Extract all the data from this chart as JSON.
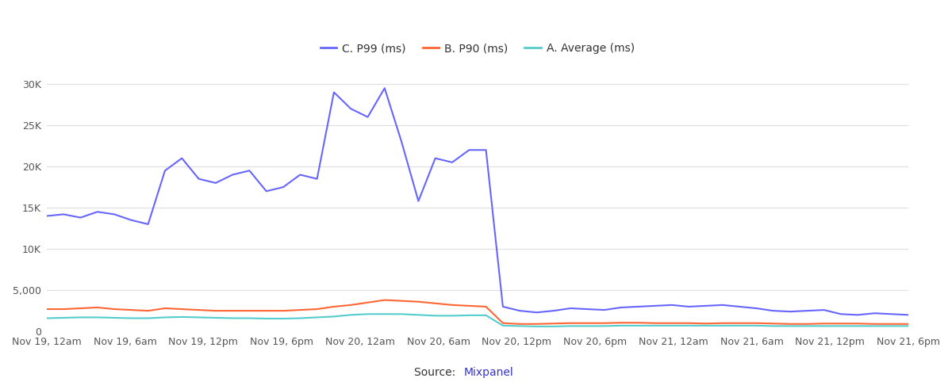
{
  "legend": [
    "C. P99 (ms)",
    "B. P90 (ms)",
    "A. Average (ms)"
  ],
  "legend_colors": [
    "#6666ff",
    "#ff6633",
    "#55cccc"
  ],
  "background_color": "#ffffff",
  "grid_color": "#dddddd",
  "tick_label_color": "#555555",
  "x_tick_labels": [
    "Nov 19, 12am",
    "Nov 19, 6am",
    "Nov 19, 12pm",
    "Nov 19, 6pm",
    "Nov 20, 12am",
    "Nov 20, 6am",
    "Nov 20, 12pm",
    "Nov 20, 6pm",
    "Nov 21, 12am",
    "Nov 21, 6am",
    "Nov 21, 12pm",
    "Nov 21, 6pm"
  ],
  "y_tick_labels": [
    "0",
    "5,000",
    "10K",
    "15K",
    "20K",
    "25K",
    "30K"
  ],
  "y_tick_values": [
    0,
    5000,
    10000,
    15000,
    20000,
    25000,
    30000
  ],
  "ylim": [
    0,
    32000
  ],
  "p99": [
    14000,
    14200,
    13800,
    14500,
    14200,
    13500,
    13000,
    19500,
    21000,
    18500,
    18000,
    19000,
    19500,
    17000,
    17500,
    19000,
    18500,
    29000,
    27000,
    26000,
    29500,
    23000,
    15800,
    21000,
    20500,
    22000,
    22000,
    3000,
    2500,
    2300,
    2500,
    2800,
    2700,
    2600,
    2900,
    3000,
    3100,
    3200,
    3000,
    3100,
    3200,
    3000,
    2800,
    2500,
    2400,
    2500,
    2600,
    2100,
    2000,
    2200,
    2100,
    2000
  ],
  "p90": [
    2700,
    2700,
    2800,
    2900,
    2700,
    2600,
    2500,
    2800,
    2700,
    2600,
    2500,
    2500,
    2500,
    2500,
    2500,
    2600,
    2700,
    3000,
    3200,
    3500,
    3800,
    3700,
    3600,
    3400,
    3200,
    3100,
    3000,
    1000,
    900,
    900,
    950,
    1000,
    1000,
    1000,
    1050,
    1050,
    1000,
    1000,
    1000,
    950,
    1000,
    1000,
    1000,
    950,
    900,
    900,
    950,
    950,
    950,
    900,
    900,
    900
  ],
  "avg": [
    1600,
    1650,
    1700,
    1700,
    1650,
    1600,
    1600,
    1700,
    1750,
    1700,
    1650,
    1600,
    1600,
    1550,
    1550,
    1600,
    1700,
    1800,
    2000,
    2100,
    2100,
    2100,
    2000,
    1900,
    1900,
    1950,
    1950,
    700,
    650,
    600,
    600,
    650,
    650,
    650,
    700,
    700,
    700,
    700,
    700,
    700,
    700,
    700,
    700,
    650,
    650,
    650,
    650,
    650,
    650,
    650,
    650,
    650
  ]
}
